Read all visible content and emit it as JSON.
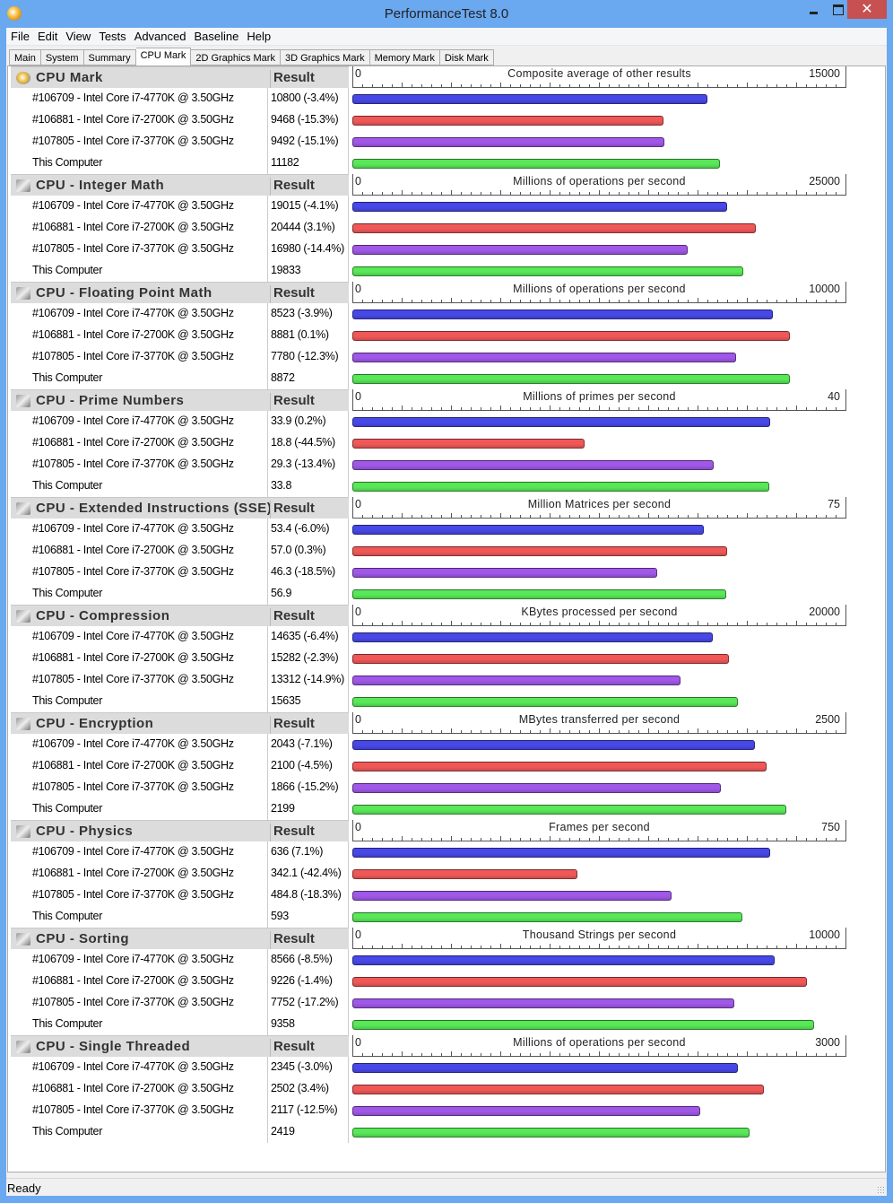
{
  "window": {
    "title": "PerformanceTest 8.0",
    "close": "✕"
  },
  "menu": [
    "File",
    "Edit",
    "View",
    "Tests",
    "Advanced",
    "Baseline",
    "Help"
  ],
  "tabs": [
    {
      "label": "Main"
    },
    {
      "label": "System"
    },
    {
      "label": "Summary"
    },
    {
      "label": "CPU Mark",
      "active": true
    },
    {
      "label": "2D Graphics Mark"
    },
    {
      "label": "3D Graphics Mark"
    },
    {
      "label": "Memory Mark"
    },
    {
      "label": "Disk Mark"
    }
  ],
  "result_header": "Result",
  "axis_zero": "0",
  "colors": {
    "blue": "#4848e8",
    "red": "#f05858",
    "purple": "#a058e8",
    "green": "#58e858"
  },
  "sections": [
    {
      "title": "CPU Mark",
      "axis_label": "Composite average of other results",
      "max": 15000,
      "max_label": "15000",
      "rows": [
        {
          "name": "#106709 - Intel Core i7-4770K @ 3.50GHz",
          "result": "10800 (-3.4%)",
          "value": 10800
        },
        {
          "name": "#106881 - Intel Core i7-2700K @ 3.50GHz",
          "result": "9468 (-15.3%)",
          "value": 9468
        },
        {
          "name": "#107805 - Intel Core i7-3770K @ 3.50GHz",
          "result": "9492 (-15.1%)",
          "value": 9492
        },
        {
          "name": "This Computer",
          "result": "11182",
          "value": 11182
        }
      ]
    },
    {
      "title": "CPU - Integer Math",
      "axis_label": "Millions of operations per second",
      "max": 25000,
      "max_label": "25000",
      "rows": [
        {
          "name": "#106709 - Intel Core i7-4770K @ 3.50GHz",
          "result": "19015 (-4.1%)",
          "value": 19015
        },
        {
          "name": "#106881 - Intel Core i7-2700K @ 3.50GHz",
          "result": "20444 (3.1%)",
          "value": 20444
        },
        {
          "name": "#107805 - Intel Core i7-3770K @ 3.50GHz",
          "result": "16980 (-14.4%)",
          "value": 16980
        },
        {
          "name": "This Computer",
          "result": "19833",
          "value": 19833
        }
      ]
    },
    {
      "title": "CPU - Floating Point Math",
      "axis_label": "Millions of operations per second",
      "max": 10000,
      "max_label": "10000",
      "rows": [
        {
          "name": "#106709 - Intel Core i7-4770K @ 3.50GHz",
          "result": "8523 (-3.9%)",
          "value": 8523
        },
        {
          "name": "#106881 - Intel Core i7-2700K @ 3.50GHz",
          "result": "8881 (0.1%)",
          "value": 8881
        },
        {
          "name": "#107805 - Intel Core i7-3770K @ 3.50GHz",
          "result": "7780 (-12.3%)",
          "value": 7780
        },
        {
          "name": "This Computer",
          "result": "8872",
          "value": 8872
        }
      ]
    },
    {
      "title": "CPU - Prime Numbers",
      "axis_label": "Millions of primes per second",
      "max": 40,
      "max_label": "40",
      "rows": [
        {
          "name": "#106709 - Intel Core i7-4770K @ 3.50GHz",
          "result": "33.9 (0.2%)",
          "value": 33.9
        },
        {
          "name": "#106881 - Intel Core i7-2700K @ 3.50GHz",
          "result": "18.8 (-44.5%)",
          "value": 18.8
        },
        {
          "name": "#107805 - Intel Core i7-3770K @ 3.50GHz",
          "result": "29.3 (-13.4%)",
          "value": 29.3
        },
        {
          "name": "This Computer",
          "result": "33.8",
          "value": 33.8
        }
      ]
    },
    {
      "title": "CPU - Extended Instructions (SSE)",
      "axis_label": "Million Matrices per second",
      "max": 75,
      "max_label": "75",
      "rows": [
        {
          "name": "#106709 - Intel Core i7-4770K @ 3.50GHz",
          "result": "53.4 (-6.0%)",
          "value": 53.4
        },
        {
          "name": "#106881 - Intel Core i7-2700K @ 3.50GHz",
          "result": "57.0 (0.3%)",
          "value": 57.0
        },
        {
          "name": "#107805 - Intel Core i7-3770K @ 3.50GHz",
          "result": "46.3 (-18.5%)",
          "value": 46.3
        },
        {
          "name": "This Computer",
          "result": "56.9",
          "value": 56.9
        }
      ]
    },
    {
      "title": "CPU - Compression",
      "axis_label": "KBytes processed per second",
      "max": 20000,
      "max_label": "20000",
      "rows": [
        {
          "name": "#106709 - Intel Core i7-4770K @ 3.50GHz",
          "result": "14635 (-6.4%)",
          "value": 14635
        },
        {
          "name": "#106881 - Intel Core i7-2700K @ 3.50GHz",
          "result": "15282 (-2.3%)",
          "value": 15282
        },
        {
          "name": "#107805 - Intel Core i7-3770K @ 3.50GHz",
          "result": "13312 (-14.9%)",
          "value": 13312
        },
        {
          "name": "This Computer",
          "result": "15635",
          "value": 15635
        }
      ]
    },
    {
      "title": "CPU - Encryption",
      "axis_label": "MBytes transferred per second",
      "max": 2500,
      "max_label": "2500",
      "rows": [
        {
          "name": "#106709 - Intel Core i7-4770K @ 3.50GHz",
          "result": "2043 (-7.1%)",
          "value": 2043
        },
        {
          "name": "#106881 - Intel Core i7-2700K @ 3.50GHz",
          "result": "2100 (-4.5%)",
          "value": 2100
        },
        {
          "name": "#107805 - Intel Core i7-3770K @ 3.50GHz",
          "result": "1866 (-15.2%)",
          "value": 1866
        },
        {
          "name": "This Computer",
          "result": "2199",
          "value": 2199
        }
      ]
    },
    {
      "title": "CPU - Physics",
      "axis_label": "Frames per second",
      "max": 750,
      "max_label": "750",
      "rows": [
        {
          "name": "#106709 - Intel Core i7-4770K @ 3.50GHz",
          "result": "636 (7.1%)",
          "value": 636
        },
        {
          "name": "#106881 - Intel Core i7-2700K @ 3.50GHz",
          "result": "342.1 (-42.4%)",
          "value": 342.1
        },
        {
          "name": "#107805 - Intel Core i7-3770K @ 3.50GHz",
          "result": "484.8 (-18.3%)",
          "value": 484.8
        },
        {
          "name": "This Computer",
          "result": "593",
          "value": 593
        }
      ]
    },
    {
      "title": "CPU - Sorting",
      "axis_label": "Thousand Strings per second",
      "max": 10000,
      "max_label": "10000",
      "rows": [
        {
          "name": "#106709 - Intel Core i7-4770K @ 3.50GHz",
          "result": "8566 (-8.5%)",
          "value": 8566
        },
        {
          "name": "#106881 - Intel Core i7-2700K @ 3.50GHz",
          "result": "9226 (-1.4%)",
          "value": 9226
        },
        {
          "name": "#107805 - Intel Core i7-3770K @ 3.50GHz",
          "result": "7752 (-17.2%)",
          "value": 7752
        },
        {
          "name": "This Computer",
          "result": "9358",
          "value": 9358
        }
      ]
    },
    {
      "title": "CPU - Single Threaded",
      "axis_label": "Millions of operations per second",
      "max": 3000,
      "max_label": "3000",
      "rows": [
        {
          "name": "#106709 - Intel Core i7-4770K @ 3.50GHz",
          "result": "2345 (-3.0%)",
          "value": 2345
        },
        {
          "name": "#106881 - Intel Core i7-2700K @ 3.50GHz",
          "result": "2502 (3.4%)",
          "value": 2502
        },
        {
          "name": "#107805 - Intel Core i7-3770K @ 3.50GHz",
          "result": "2117 (-12.5%)",
          "value": 2117
        },
        {
          "name": "This Computer",
          "result": "2419",
          "value": 2419
        }
      ]
    }
  ],
  "status": "Ready"
}
